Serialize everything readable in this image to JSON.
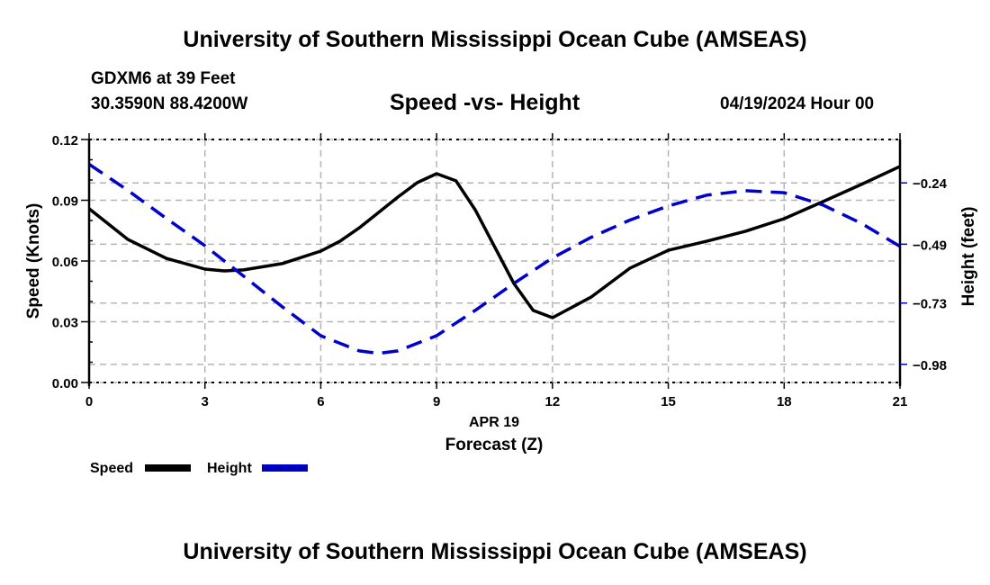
{
  "header": {
    "main_title": "University of Southern Mississippi Ocean Cube (AMSEAS)",
    "station": "GDXM6 at 39 Feet",
    "coordinates": "30.3590N  88.4200W",
    "date": "04/19/2024 Hour 00",
    "footer_title": "University of Southern Mississippi Ocean Cube (AMSEAS)"
  },
  "colors": {
    "speed": "#000000",
    "height": "#0000cc",
    "grid": "#b4b4b4"
  },
  "chart_data": {
    "type": "line",
    "title": "Speed -vs- Height",
    "xlabel": "Forecast (Z)",
    "xlabel_date": "APR 19",
    "ylabel": "Speed (Knots)",
    "y2label": "Height (feet)",
    "xlim": [
      0,
      21
    ],
    "x_ticks": [
      0,
      3,
      6,
      9,
      12,
      15,
      18,
      21
    ],
    "x_tick_labels": [
      "0",
      "3",
      "6",
      "9",
      "12",
      "15",
      "18",
      "21"
    ],
    "ylim": [
      0.0,
      0.12
    ],
    "y_ticks": [
      0.0,
      0.03,
      0.06,
      0.09,
      0.12
    ],
    "y_tick_labels": [
      "0.00",
      "0.03",
      "0.06",
      "0.09",
      "0.12"
    ],
    "y2lim": [
      -1.054,
      -0.063
    ],
    "y2_ticks": [
      -0.24,
      -0.49,
      -0.73,
      -0.98
    ],
    "y2_tick_labels": [
      "−0.24",
      "−0.49",
      "−0.73",
      "−0.98"
    ],
    "grid": true,
    "legend": "bottom-left",
    "series": [
      {
        "name": "Speed",
        "axis": "left",
        "style": "solid",
        "x": [
          0,
          1,
          2,
          3,
          3.5,
          4,
          5,
          6,
          6.5,
          7,
          8,
          8.5,
          9,
          9.5,
          10,
          11,
          11.5,
          12,
          13,
          14,
          15,
          16,
          17,
          18,
          19,
          20,
          21
        ],
        "values": [
          0.0858,
          0.0707,
          0.0613,
          0.056,
          0.0551,
          0.0556,
          0.0587,
          0.0649,
          0.0698,
          0.0764,
          0.0916,
          0.0987,
          0.1031,
          0.0996,
          0.0853,
          0.0489,
          0.0356,
          0.032,
          0.0422,
          0.0564,
          0.0653,
          0.0698,
          0.0747,
          0.0809,
          0.0893,
          0.0978,
          0.1067
        ]
      },
      {
        "name": "Height",
        "axis": "right",
        "style": "dashed",
        "x": [
          0,
          1,
          2,
          3,
          4,
          5,
          6,
          7,
          7.5,
          8,
          9,
          10,
          11,
          12,
          13,
          14,
          15,
          16,
          17,
          18,
          19,
          20,
          21
        ],
        "values": [
          -0.164,
          -0.27,
          -0.385,
          -0.496,
          -0.62,
          -0.745,
          -0.863,
          -0.925,
          -0.935,
          -0.925,
          -0.863,
          -0.76,
          -0.65,
          -0.546,
          -0.462,
          -0.392,
          -0.334,
          -0.29,
          -0.272,
          -0.28,
          -0.33,
          -0.405,
          -0.499
        ]
      }
    ]
  }
}
